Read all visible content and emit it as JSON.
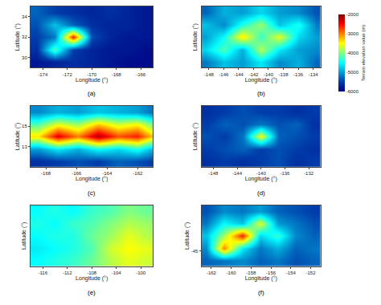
{
  "chart_data": [
    {
      "type": "heatmap",
      "title": "(a)",
      "x_label": "Longitude (°)",
      "y_label": "Latitude (°)",
      "x": [
        -174.5,
        -173,
        -171.5,
        -170,
        -168.5,
        -167,
        -165.5
      ],
      "y": [
        29.6,
        30.8,
        32,
        33.2,
        34.4
      ],
      "z": [
        [
          -5800,
          -5700,
          -5600,
          -5700,
          -5800,
          -5900,
          -5900
        ],
        [
          -5600,
          -4200,
          -5500,
          -5700,
          -5800,
          -5800,
          -5900
        ],
        [
          -5500,
          -5200,
          -2600,
          -5400,
          -5700,
          -5800,
          -5800
        ],
        [
          -5400,
          -4800,
          -5300,
          -5600,
          -5700,
          -5700,
          -5800
        ],
        [
          -5300,
          -5500,
          -5600,
          -5700,
          -5600,
          -5700,
          -5800
        ]
      ],
      "xlim": [
        -175,
        -165
      ],
      "xticks": [
        -174,
        -172,
        -170,
        -168,
        -166
      ],
      "ylim": [
        29,
        35
      ],
      "yticks": [
        30,
        32,
        34
      ],
      "zlim": [
        -6000,
        -2000
      ]
    },
    {
      "type": "heatmap",
      "title": "(b)",
      "x_label": "Longitude (°)",
      "y_label": "Latitude (°)",
      "x": [
        -148.5,
        -146,
        -143.5,
        -141,
        -138.5,
        -136,
        -133.5
      ],
      "y": [
        50.8,
        52.4,
        54,
        55.6,
        57.2
      ],
      "z": [
        [
          -5200,
          -4800,
          -5000,
          -4600,
          -5100,
          -4900,
          -5300
        ],
        [
          -4700,
          -4200,
          -4900,
          -3800,
          -4600,
          -5000,
          -5100
        ],
        [
          -5000,
          -4500,
          -3400,
          -4300,
          -3600,
          -4700,
          -5000
        ],
        [
          -4800,
          -5100,
          -4400,
          -3900,
          -4800,
          -4400,
          -5200
        ],
        [
          -5300,
          -4900,
          -5000,
          -4700,
          -5000,
          -5100,
          -5400
        ]
      ],
      "xlim": [
        -149,
        -133
      ],
      "xticks": [
        -148,
        -146,
        -144,
        -142,
        -140,
        -138,
        -136,
        -134
      ],
      "ylim": [
        50,
        58
      ],
      "tick_labels": "x",
      "zlim": [
        -6000,
        -2000
      ],
      "zticks": [
        -2000,
        -3000,
        -4000,
        -5000,
        -6000
      ],
      "colorbar_title": "Terrain elevation value (m)"
    },
    {
      "type": "heatmap",
      "title": "(c)",
      "x_label": "Longitude (°)",
      "y_label": "Latitude (°)",
      "x": [
        -168.5,
        -167.2,
        -165.9,
        -164.6,
        -163.3,
        -162,
        -161.2
      ],
      "y": [
        11.6,
        12.8,
        14,
        15.2,
        16.4
      ],
      "z": [
        [
          -5600,
          -5500,
          -5400,
          -5500,
          -5300,
          -5400,
          -5500
        ],
        [
          -5000,
          -4600,
          -4900,
          -4500,
          -4700,
          -4400,
          -4800
        ],
        [
          -3400,
          -2400,
          -3000,
          -2200,
          -2800,
          -2600,
          -3200
        ],
        [
          -4200,
          -3600,
          -3900,
          -3300,
          -3700,
          -3500,
          -4000
        ],
        [
          -5100,
          -4900,
          -5000,
          -4800,
          -4900,
          -5000,
          -5200
        ]
      ],
      "xlim": [
        -169,
        -161
      ],
      "xticks": [
        -168,
        -166,
        -164,
        -162
      ],
      "ylim": [
        11,
        17
      ],
      "yticks": [
        13,
        15
      ],
      "zlim": [
        -6000,
        -2000
      ]
    },
    {
      "type": "heatmap",
      "title": "(d)",
      "x_label": "Longitude (°)",
      "y_label": "Latitude (°)",
      "x": [
        -149,
        -146,
        -143,
        -140,
        -137,
        -134,
        -131
      ],
      "y": [
        31,
        33,
        35,
        37,
        39
      ],
      "z": [
        [
          -5600,
          -5500,
          -5600,
          -5500,
          -5400,
          -5600,
          -5500
        ],
        [
          -5500,
          -5400,
          -5300,
          -5500,
          -5400,
          -5500,
          -5600
        ],
        [
          -5400,
          -5500,
          -5200,
          -3500,
          -5300,
          -5400,
          -5500
        ],
        [
          -5500,
          -5300,
          -5400,
          -5200,
          -5400,
          -5300,
          -5600
        ],
        [
          -5600,
          -5500,
          -5400,
          -5500,
          -5500,
          -5600,
          -5500
        ]
      ],
      "xlim": [
        -150,
        -130
      ],
      "xticks": [
        -148,
        -144,
        -140,
        -136,
        -132
      ],
      "ylim": [
        30,
        40
      ],
      "tick_labels": "x",
      "zlim": [
        -6000,
        -2000
      ]
    },
    {
      "type": "heatmap",
      "title": "(e)",
      "x_label": "Longitude (°)",
      "y_label": "Latitude (°)",
      "x": [
        -117,
        -114,
        -111,
        -108,
        -105,
        -102,
        -99
      ],
      "y": [
        -29,
        -27,
        -25,
        -23,
        -21
      ],
      "z": [
        [
          -4500,
          -4400,
          -4300,
          -4100,
          -3800,
          -3600,
          -3700
        ],
        [
          -4600,
          -4500,
          -4400,
          -4200,
          -3700,
          -3500,
          -3600
        ],
        [
          -4500,
          -4400,
          -4400,
          -4100,
          -3900,
          -3600,
          -3800
        ],
        [
          -4400,
          -4500,
          -4300,
          -4200,
          -4000,
          -3800,
          -3900
        ],
        [
          -4500,
          -4400,
          -4500,
          -4300,
          -4200,
          -4000,
          -4100
        ]
      ],
      "xlim": [
        -118,
        -98
      ],
      "xticks": [
        -116,
        -112,
        -108,
        -104,
        -100
      ],
      "ylim": [
        -30,
        -20
      ],
      "tick_labels": "x",
      "zlim": [
        -6000,
        -2000
      ]
    },
    {
      "type": "heatmap",
      "title": "(f)",
      "x_label": "Longitude (°)",
      "y_label": "Latitude (°)",
      "x": [
        -162.5,
        -160.7,
        -158.9,
        -157.1,
        -155.3,
        -153.5,
        -151.7
      ],
      "y": [
        -46.2,
        -44.6,
        -43,
        -41.4,
        -39.8
      ],
      "z": [
        [
          -5300,
          -5200,
          -5100,
          -5300,
          -5200,
          -5400,
          -5300
        ],
        [
          -5100,
          -3000,
          -4600,
          -5200,
          -4900,
          -5300,
          -5200
        ],
        [
          -4800,
          -3900,
          -2600,
          -4700,
          -4300,
          -5100,
          -5300
        ],
        [
          -5200,
          -4500,
          -4800,
          -3600,
          -5000,
          -5200,
          -5400
        ],
        [
          -5400,
          -5100,
          -5200,
          -5000,
          -5300,
          -5400,
          -5500
        ]
      ],
      "xlim": [
        -163,
        -151
      ],
      "xticks": [
        -162,
        -160,
        -158,
        -156,
        -154,
        -152
      ],
      "ylim": [
        -47,
        -39
      ],
      "yticks": [
        -45
      ],
      "zlim": [
        -6000,
        -2000
      ]
    }
  ]
}
